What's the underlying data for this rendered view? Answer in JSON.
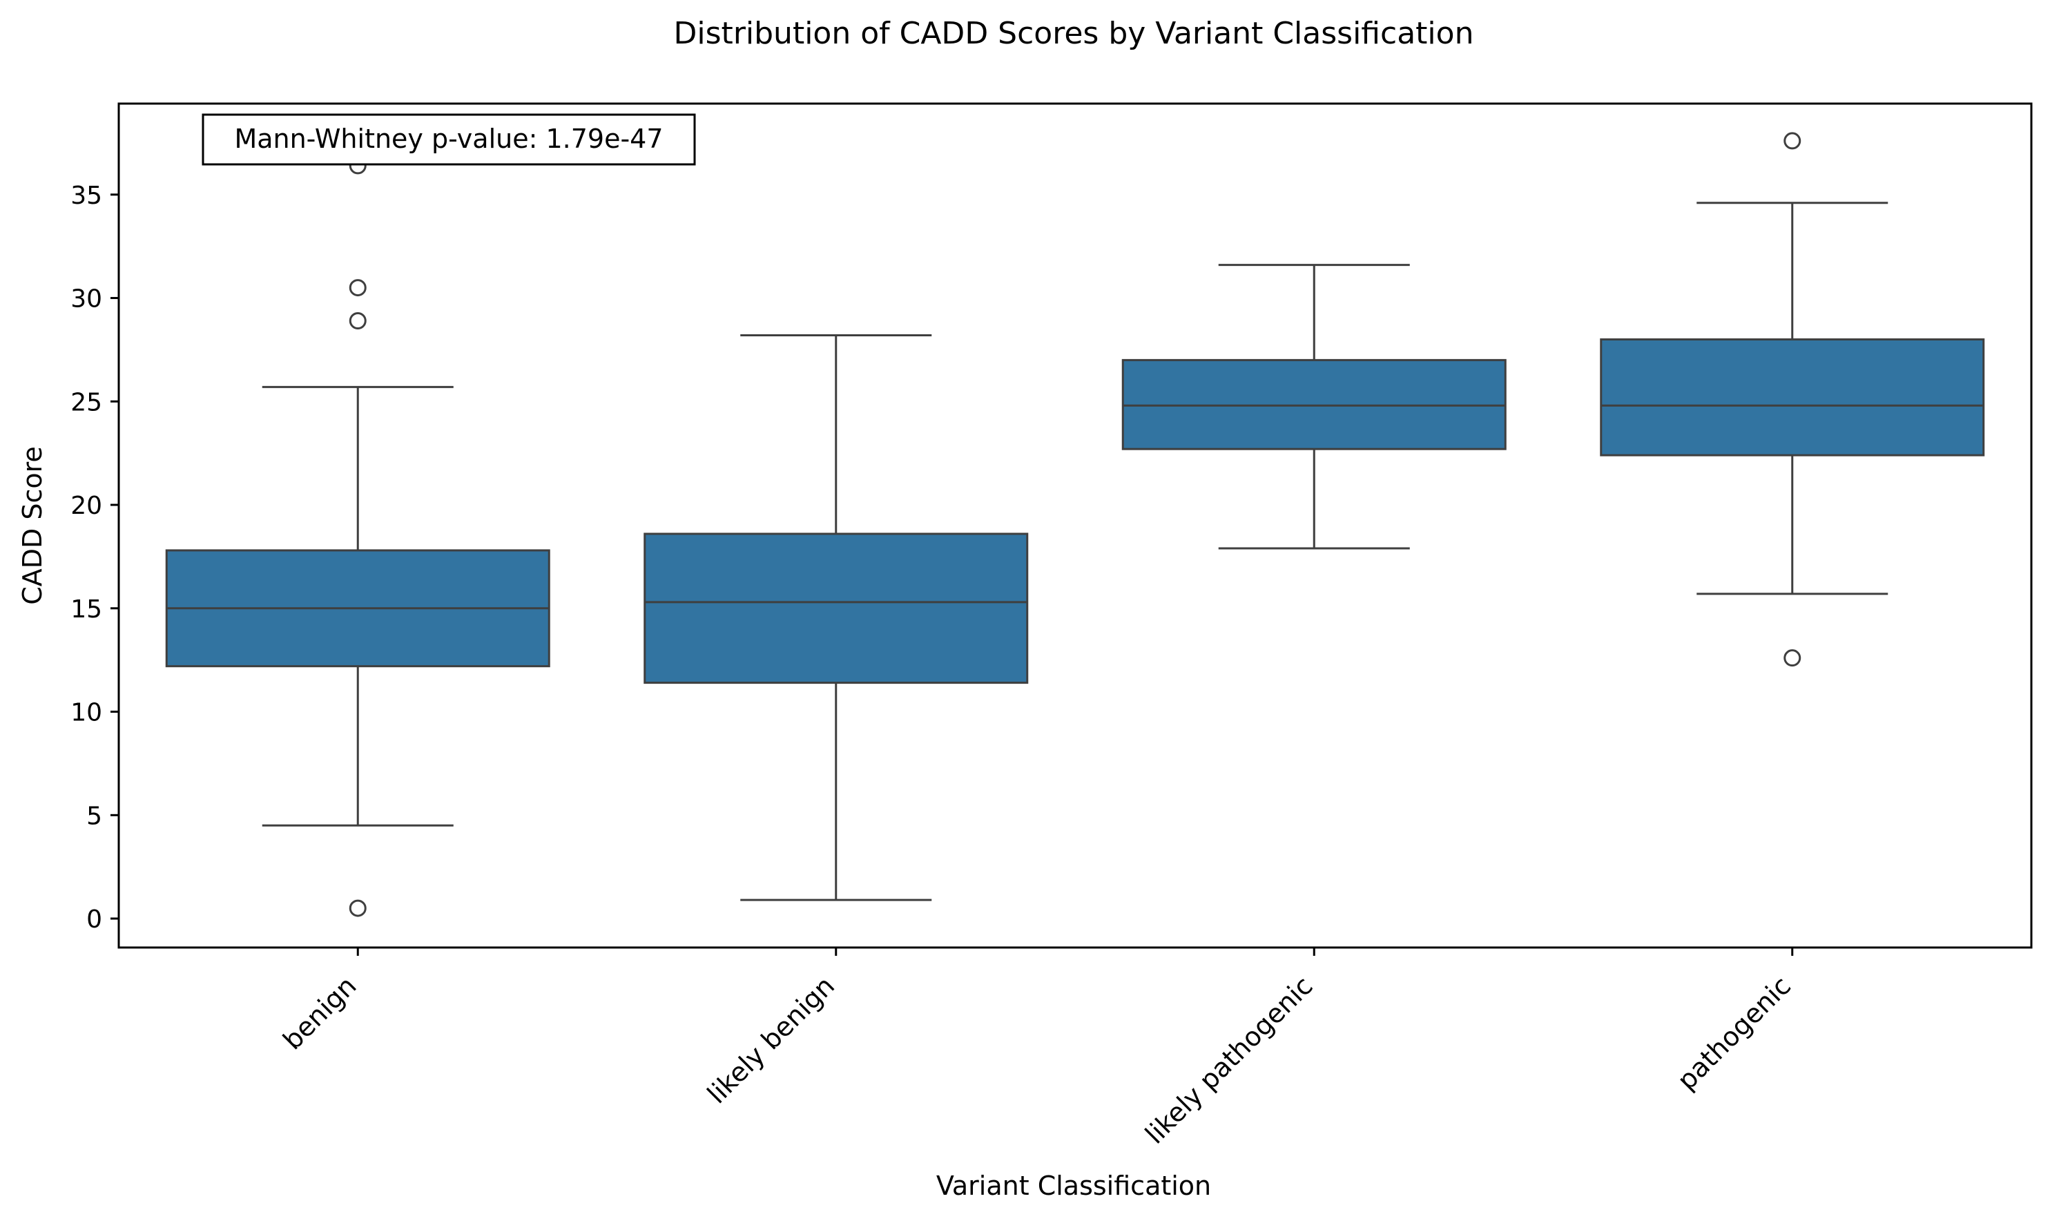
{
  "chart_data": {
    "type": "box",
    "title": "Distribution of CADD Scores by Variant Classification",
    "xlabel": "Variant Classification",
    "ylabel": "CADD Score",
    "ylim": [
      -1.4,
      39.4
    ],
    "yticks": [
      0,
      5,
      10,
      15,
      20,
      25,
      30,
      35
    ],
    "grid": false,
    "categories": [
      "benign",
      "likely benign",
      "likely pathogenic",
      "pathogenic"
    ],
    "boxes": [
      {
        "category": "benign",
        "whisker_low": 4.5,
        "q1": 12.2,
        "median": 15.0,
        "q3": 17.8,
        "whisker_high": 25.7,
        "outliers": [
          36.4,
          30.5,
          28.9,
          0.5
        ]
      },
      {
        "category": "likely benign",
        "whisker_low": 0.9,
        "q1": 11.4,
        "median": 15.3,
        "q3": 18.6,
        "whisker_high": 28.2,
        "outliers": []
      },
      {
        "category": "likely pathogenic",
        "whisker_low": 17.9,
        "q1": 22.7,
        "median": 24.8,
        "q3": 27.0,
        "whisker_high": 31.6,
        "outliers": []
      },
      {
        "category": "pathogenic",
        "whisker_low": 15.7,
        "q1": 22.4,
        "median": 24.8,
        "q3": 28.0,
        "whisker_high": 34.6,
        "outliers": [
          37.6,
          12.6
        ]
      }
    ],
    "annotation": "Mann-Whitney p-value: 1.79e-47",
    "colors": {
      "box_fill": "#3274a1",
      "line": "#3f3f3f"
    }
  }
}
